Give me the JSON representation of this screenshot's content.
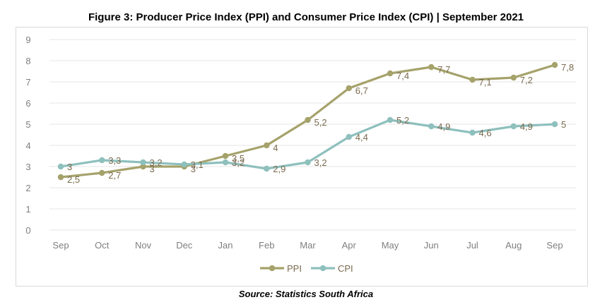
{
  "title": "Figure 3: Producer Price Index (PPI) and Consumer Price Index (CPI) | September 2021",
  "source": "Source: Statistics South Africa",
  "chart_data": {
    "type": "line",
    "categories": [
      "Sep",
      "Oct",
      "Nov",
      "Dec",
      "Jan",
      "Feb",
      "Mar",
      "Apr",
      "May",
      "Jun",
      "Jul",
      "Aug",
      "Sep"
    ],
    "series": [
      {
        "name": "PPI",
        "color": "#a5a26b",
        "values": [
          2.5,
          2.7,
          3.0,
          3.0,
          3.5,
          4.0,
          5.2,
          6.7,
          7.4,
          7.7,
          7.1,
          7.2,
          7.8
        ],
        "labels": [
          "2,5",
          "2,7",
          "3",
          "3",
          "3,5",
          "4",
          "5,2",
          "6,7",
          "7,4",
          "7,7",
          "7,1",
          "7,2",
          "7,8"
        ]
      },
      {
        "name": "CPI",
        "color": "#8ec0bd",
        "values": [
          3.0,
          3.3,
          3.2,
          3.1,
          3.2,
          2.9,
          3.2,
          4.4,
          5.2,
          4.9,
          4.6,
          4.9,
          5.0
        ],
        "labels": [
          "3",
          "3,3",
          "3,2",
          "3,1",
          "3,2",
          "2,9",
          "3,2",
          "4,4",
          "5,2",
          "4,9",
          "4,6",
          "4,9",
          "5"
        ]
      }
    ],
    "y_ticks": [
      "0",
      "1",
      "2",
      "3",
      "4",
      "5",
      "6",
      "7",
      "8",
      "9"
    ],
    "ylim": [
      0,
      9
    ],
    "grid": true,
    "legend_position": "bottom"
  }
}
